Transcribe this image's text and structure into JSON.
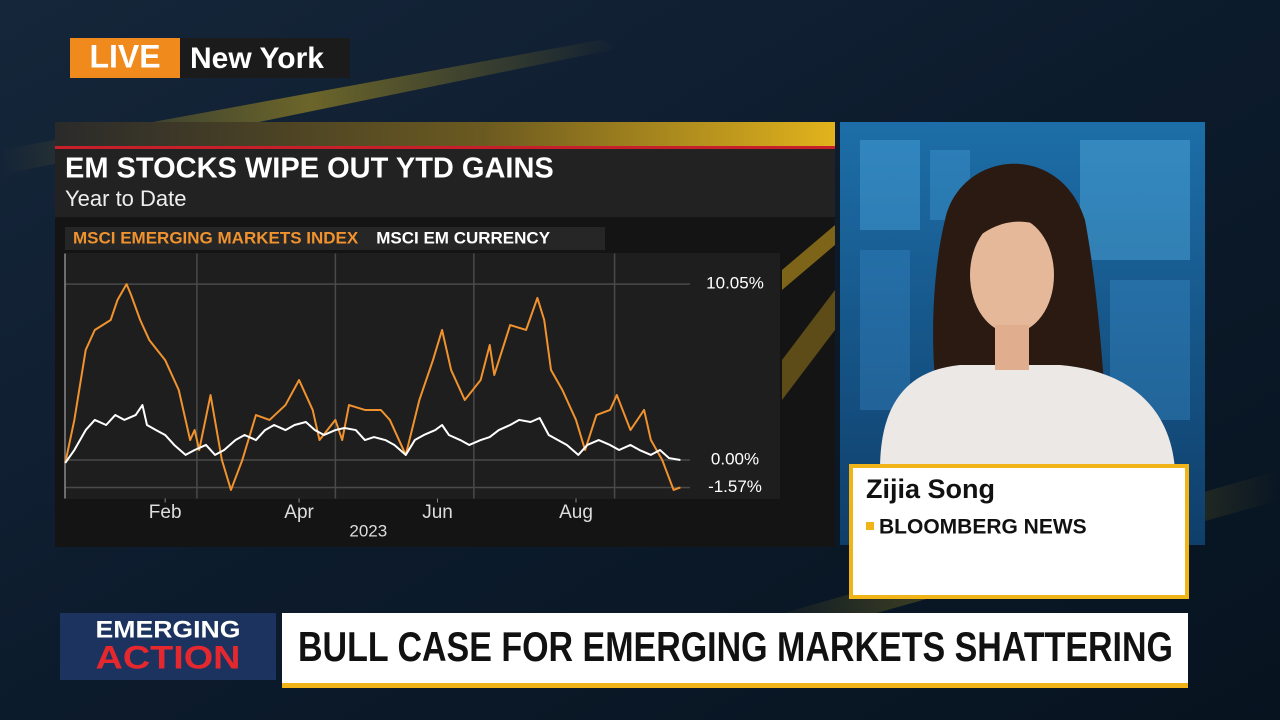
{
  "live_badge": {
    "live": "LIVE",
    "location": "New York"
  },
  "chart_data": {
    "type": "line",
    "title": "EM STOCKS WIPE OUT YTD GAINS",
    "subtitle": "Year to Date",
    "x_label": "2023",
    "series": [
      {
        "name": "MSCI EMERGING MARKETS INDEX",
        "color": "#f0922e",
        "x": [
          2,
          6,
          11,
          15,
          22,
          25,
          29,
          31,
          35,
          39,
          46,
          52,
          55,
          57,
          59,
          61,
          66,
          71,
          75,
          80,
          86,
          92,
          99,
          105,
          111,
          114,
          121,
          124,
          127,
          134,
          141,
          145,
          152,
          158,
          164,
          168,
          172,
          178,
          185,
          189,
          191,
          198,
          205,
          210,
          213,
          216,
          221,
          227,
          231,
          236,
          242,
          245,
          251,
          257,
          260,
          265,
          270,
          273
        ],
        "values": [
          -0.17,
          2.29,
          6.29,
          7.43,
          8.0,
          9.14,
          10.05,
          9.43,
          8.0,
          6.86,
          5.71,
          4.0,
          2.29,
          1.14,
          1.71,
          0.57,
          3.71,
          0,
          -1.71,
          0,
          2.57,
          2.29,
          3.14,
          4.57,
          2.86,
          1.14,
          2.29,
          1.14,
          3.14,
          2.86,
          2.86,
          2.29,
          0.29,
          3.43,
          5.71,
          7.43,
          5.14,
          3.43,
          4.57,
          6.57,
          4.86,
          7.71,
          7.43,
          9.26,
          8.0,
          5.14,
          4.0,
          2.29,
          0.57,
          2.57,
          2.86,
          3.71,
          1.71,
          2.86,
          1.14,
          0,
          -1.71,
          -1.57
        ]
      },
      {
        "name": "MSCI EM CURRENCY",
        "color": "#ffffff",
        "x": [
          2,
          6,
          11,
          15,
          20,
          24,
          28,
          33,
          36,
          38,
          42,
          46,
          50,
          55,
          59,
          64,
          68,
          72,
          77,
          81,
          86,
          90,
          94,
          99,
          103,
          108,
          112,
          116,
          121,
          125,
          130,
          134,
          138,
          143,
          147,
          152,
          156,
          160,
          165,
          168,
          171,
          176,
          180,
          185,
          189,
          193,
          198,
          202,
          207,
          211,
          215,
          219,
          223,
          228,
          232,
          237,
          242,
          246,
          251,
          255,
          260,
          264,
          268,
          273
        ],
        "values": [
          -0.17,
          0.57,
          1.71,
          2.29,
          2.0,
          2.57,
          2.29,
          2.57,
          3.14,
          2.0,
          1.71,
          1.43,
          0.86,
          0.29,
          0.57,
          0.86,
          0.29,
          0.57,
          1.14,
          1.43,
          1.14,
          1.71,
          2.0,
          1.71,
          2.0,
          2.17,
          1.71,
          1.43,
          1.71,
          1.83,
          1.71,
          1.14,
          1.31,
          1.14,
          0.86,
          0.29,
          1.14,
          1.43,
          1.71,
          2.0,
          1.43,
          1.14,
          0.86,
          1.14,
          1.31,
          1.71,
          2.0,
          2.29,
          2.17,
          2.4,
          1.43,
          1.14,
          0.86,
          0.29,
          0.86,
          1.14,
          0.86,
          0.57,
          0.86,
          0.57,
          0.29,
          0.57,
          0.11,
          0.0
        ]
      }
    ],
    "xlim": [
      1,
      273
    ],
    "xticks": [
      {
        "value": 46,
        "label": "Feb"
      },
      {
        "value": 105,
        "label": "Apr"
      },
      {
        "value": 166,
        "label": "Jun"
      },
      {
        "value": 227,
        "label": "Aug"
      }
    ],
    "x_grid": [
      60,
      121,
      182,
      244
    ],
    "ylim": [
      -2.2,
      11.8
    ],
    "yticks": [
      {
        "value": 10.05,
        "label": "10.05%"
      },
      {
        "value": 0,
        "label": "0.00%"
      },
      {
        "value": -1.57,
        "label": "-1.57%"
      }
    ],
    "grid": true
  },
  "name_card": {
    "name": "Zijia Song",
    "affiliation": "BLOOMBERG NEWS"
  },
  "segment": {
    "line1": "EMERGING",
    "line2": "ACTION"
  },
  "headline": "BULL CASE FOR EMERGING MARKETS SHATTERING"
}
